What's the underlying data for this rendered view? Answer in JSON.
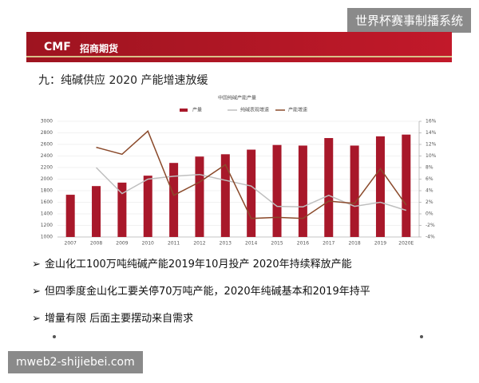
{
  "watermark_top": "世界杯赛事制播系统",
  "header": {
    "logo": "CMF",
    "company": "招商期货"
  },
  "heading": "九：纯碱供应 2020 产能增速放缓",
  "bullets": [
    "金山化工100万吨纯碱产能2019年10月投产 2020年持续释放产能",
    "但四季度金山化工要关停70万吨产能，2020年纯碱基本和2019年持平",
    "增量有限 后面主要摆动来自需求"
  ],
  "watermark_bottom": "mweb2-shijiebei.com",
  "chart_data": {
    "type": "bar",
    "title": "中国纯碱产能产量",
    "categories": [
      "2007",
      "2008",
      "2009",
      "2010",
      "2011",
      "2012",
      "2013",
      "2014",
      "2015",
      "2016",
      "2017",
      "2018",
      "2019",
      "2020E"
    ],
    "series": [
      {
        "name": "产量",
        "color": "#a8182a",
        "type": "bar",
        "values": [
          1730,
          1880,
          1940,
          2060,
          2280,
          2390,
          2430,
          2510,
          2590,
          2580,
          2710,
          2580,
          2740,
          2770
        ]
      },
      {
        "name": "纯碱表观增速",
        "color": "#bfbfbf",
        "type": "line",
        "axis": "y2",
        "values": [
          null,
          8,
          3.5,
          6,
          6.5,
          6.8,
          5.8,
          4.8,
          1.3,
          1.2,
          3.2,
          1.3,
          2,
          0.6
        ]
      },
      {
        "name": "产能增速",
        "color": "#8b4a2b",
        "type": "line",
        "axis": "y2",
        "values": [
          null,
          11.5,
          10.3,
          14.3,
          3.2,
          5.5,
          8.5,
          -0.8,
          -0.6,
          -0.8,
          2.2,
          1.8,
          7.8,
          1.5
        ]
      }
    ],
    "ylim": [
      1000,
      3000
    ],
    "yticks": [
      1000,
      1200,
      1400,
      1600,
      1800,
      2000,
      2200,
      2400,
      2600,
      2800,
      3000
    ],
    "y2lim": [
      -4,
      16
    ],
    "y2ticks": [
      {
        "value": -4,
        "label": "-4%"
      },
      {
        "value": -2,
        "label": "-2%"
      },
      {
        "value": 0,
        "label": "0%"
      },
      {
        "value": 2,
        "label": "2%"
      },
      {
        "value": 4,
        "label": "4%"
      },
      {
        "value": 6,
        "label": "6%"
      },
      {
        "value": 8,
        "label": "8%"
      },
      {
        "value": 10,
        "label": "10%"
      },
      {
        "value": 12,
        "label": "12%"
      },
      {
        "value": 14,
        "label": "14%"
      },
      {
        "value": 16,
        "label": "16%"
      }
    ],
    "grid": true
  }
}
